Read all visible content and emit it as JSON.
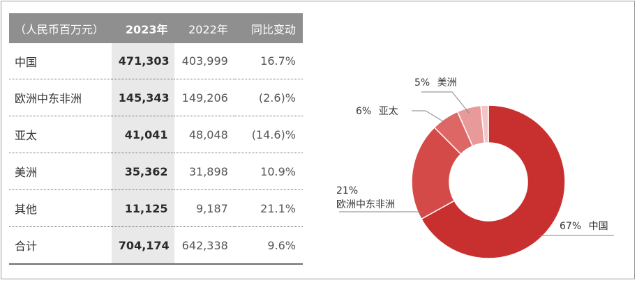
{
  "table": {
    "headers": [
      "（人民币百万元）",
      "2023年",
      "2022年",
      "同比变动"
    ],
    "rows": [
      {
        "region": "中国",
        "v2023": "471,303",
        "v2022": "403,999",
        "change": "16.7%"
      },
      {
        "region": "欧洲中东非洲",
        "v2023": "145,343",
        "v2022": "149,206",
        "change": "(2.6)%"
      },
      {
        "region": "亚太",
        "v2023": "41,041",
        "v2022": "48,048",
        "change": "(14.6)%"
      },
      {
        "region": "美洲",
        "v2023": "35,362",
        "v2022": "31,898",
        "change": "10.9%"
      },
      {
        "region": "其他",
        "v2023": "11,125",
        "v2022": "9,187",
        "change": "21.1%"
      },
      {
        "region": "合计",
        "v2023": "704,174",
        "v2022": "642,338",
        "change": "9.6%"
      }
    ]
  },
  "chart_data": {
    "type": "pie",
    "donut": true,
    "categories": [
      "中国",
      "欧洲中东非洲",
      "亚太",
      "美洲",
      "其他"
    ],
    "values": [
      471303,
      145343,
      41041,
      35362,
      11125
    ],
    "labels": [
      {
        "pct": "67%",
        "name": "中国"
      },
      {
        "pct": "21%",
        "name": "欧洲中东非洲"
      },
      {
        "pct": "6%",
        "name": "亚太"
      },
      {
        "pct": "5%",
        "name": "美洲"
      }
    ],
    "colors": [
      "#c8302f",
      "#d44a48",
      "#dd6765",
      "#e8999a",
      "#f2c6c6"
    ]
  }
}
